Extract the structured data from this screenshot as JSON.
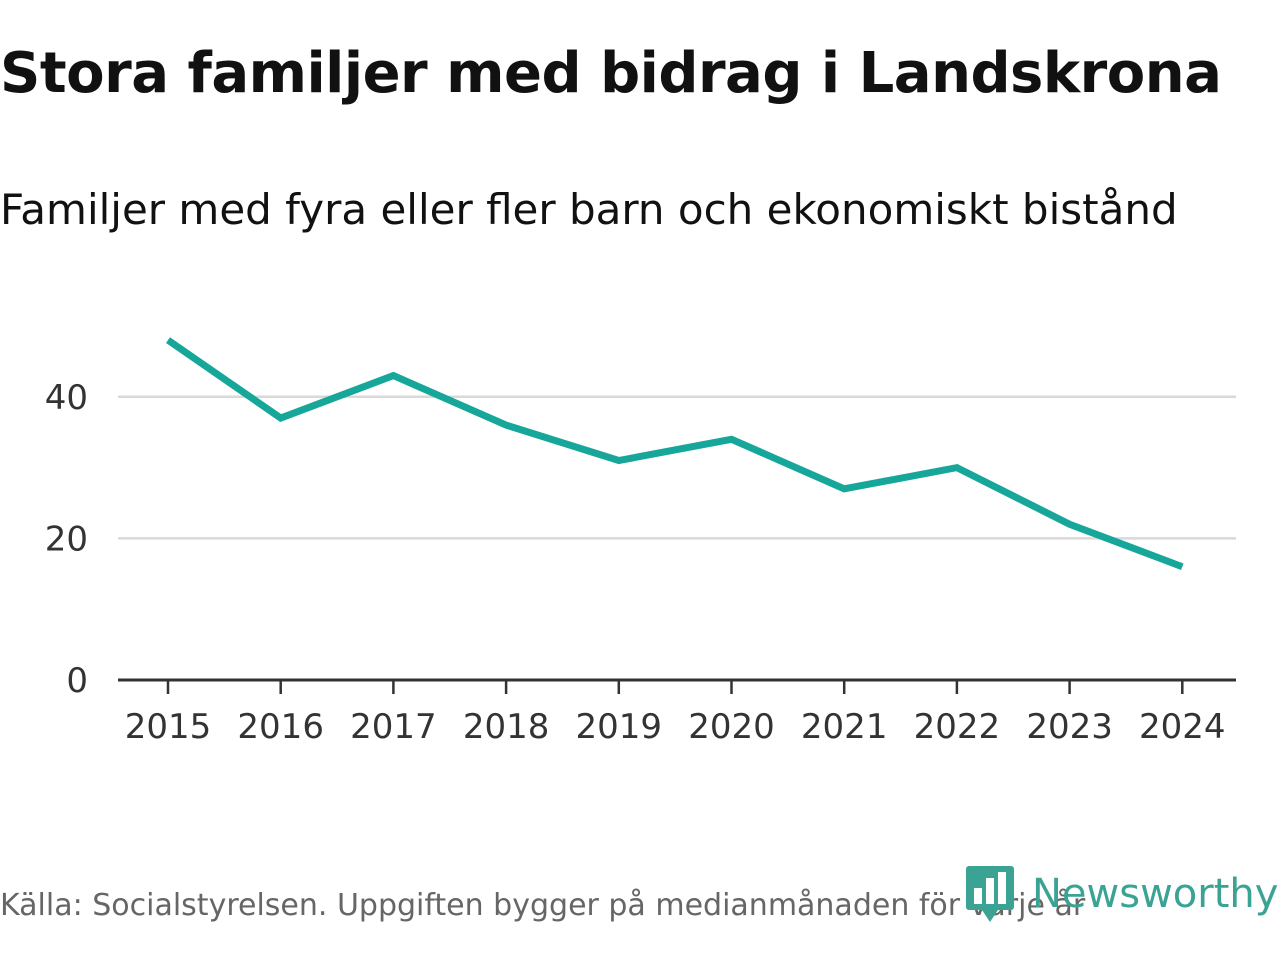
{
  "header": {
    "title": "Stora familjer med bidrag i Landskrona",
    "subtitle": "Familjer med fyra eller fler barn och ekonomiskt bistånd"
  },
  "footer": {
    "source": "Källa: Socialstyrelsen. Uppgiften bygger på medianmånaden för varje år",
    "brand": "Newsworthy",
    "brand_icon": "newsworthy-logo-icon"
  },
  "colors": {
    "line": "#16a79a",
    "grid": "#d9d9d9",
    "axis": "#333333",
    "brand": "#3aa394"
  },
  "chart_data": {
    "type": "line",
    "title": "Stora familjer med bidrag i Landskrona",
    "subtitle": "Familjer med fyra eller fler barn och ekonomiskt bistånd",
    "categories": [
      "2015",
      "2016",
      "2017",
      "2018",
      "2019",
      "2020",
      "2021",
      "2022",
      "2023",
      "2024"
    ],
    "series": [
      {
        "name": "Familjer med fyra eller fler barn och ekonomiskt bistånd",
        "values": [
          48,
          37,
          43,
          36,
          31,
          34,
          27,
          30,
          22,
          16
        ]
      }
    ],
    "xlabel": "",
    "ylabel": "",
    "ylim": [
      0,
      50
    ],
    "yticks": [
      0,
      20,
      40
    ],
    "grid": true,
    "legend": "none"
  }
}
